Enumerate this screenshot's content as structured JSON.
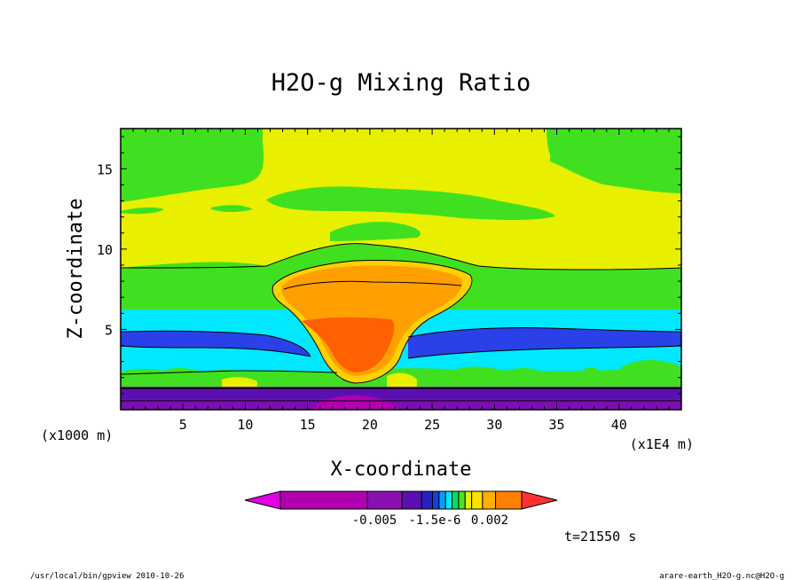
{
  "chart_data": {
    "type": "heatmap",
    "title": "H2O-g Mixing Ratio",
    "xlabel": "X-coordinate",
    "ylabel": "Z-coordinate",
    "x_unit_label": "(x1E4 m)",
    "y_unit_label": "(x1000 m)",
    "xlim": [
      0,
      45
    ],
    "ylim": [
      0,
      17.5
    ],
    "x_ticks": [
      5,
      10,
      15,
      20,
      25,
      30,
      35,
      40
    ],
    "y_ticks": [
      5,
      10,
      15
    ],
    "colorbar": {
      "colors": [
        "#e000e0",
        "#b000b0",
        "#8a10b0",
        "#5a10b0",
        "#2a20c0",
        "#1040e0",
        "#00a0ff",
        "#00e8ff",
        "#00e060",
        "#50e020",
        "#e8f000",
        "#ffe000",
        "#ffb000",
        "#ff8000",
        "#ff3030"
      ],
      "tick_labels": [
        "-0.005",
        "-1.5e-6",
        "0.002"
      ]
    },
    "time_label": "t=21550 s",
    "footer_left": "/usr/local/bin/gpview  2010-10-26",
    "footer_right": "arare-earth_H2O-g.nc@H2O-g",
    "regions": {
      "upper_band": "#e8f000",
      "upper_mid_band": "#40e020",
      "cyan_band": "#00e8ff",
      "blue_band": "#2a40e8",
      "surface_band": "#7a10b0",
      "anvil": "#ffa000",
      "core": "#ff6000"
    }
  }
}
